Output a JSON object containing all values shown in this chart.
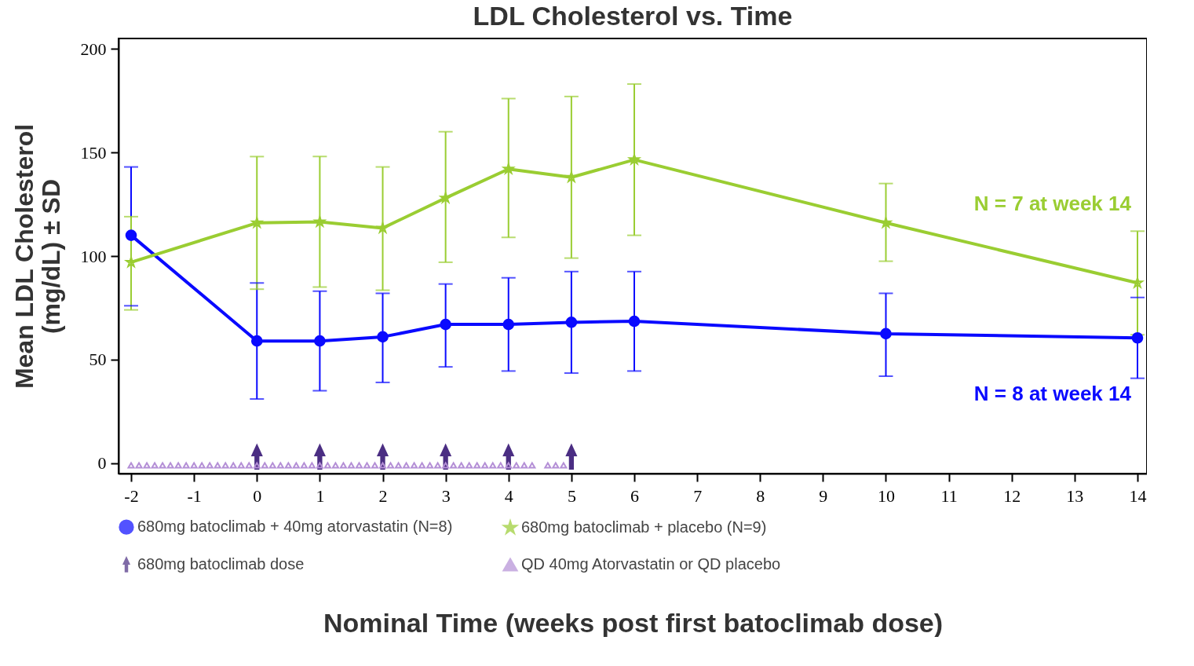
{
  "chart_data": {
    "type": "line",
    "title": "LDL Cholesterol vs. Time",
    "xlabel": "Nominal Time (weeks post first batoclimab dose)",
    "ylabel": "Mean LDL Cholesterol\n(mg/dL) ± SD",
    "x": [
      -2,
      0,
      1,
      2,
      3,
      4,
      5,
      6,
      10,
      14
    ],
    "series": [
      {
        "name": "680mg batoclimab + 40mg atorvastatin (N=8)",
        "color": "#0a0aff",
        "marker": "circle",
        "values": [
          110,
          59,
          59,
          61,
          67,
          67,
          68,
          68.5,
          62.5,
          60.5
        ],
        "errors": [
          [
            76,
            143
          ],
          [
            31,
            87
          ],
          [
            35,
            83
          ],
          [
            39,
            82
          ],
          [
            46.5,
            86.5
          ],
          [
            44.5,
            89.5
          ],
          [
            43.5,
            92.5
          ],
          [
            44.5,
            92.5
          ],
          [
            42,
            82
          ],
          [
            41,
            80
          ]
        ]
      },
      {
        "name": "680mg batoclimab + placebo (N=9)",
        "color": "#9acd32",
        "marker": "star",
        "values": [
          97,
          116,
          116.5,
          113.5,
          128,
          142,
          138,
          146.5,
          116,
          87
        ],
        "errors": [
          [
            74,
            119
          ],
          [
            84,
            148
          ],
          [
            85,
            148
          ],
          [
            83.5,
            143
          ],
          [
            97,
            160
          ],
          [
            109,
            176
          ],
          [
            99,
            177
          ],
          [
            110,
            183
          ],
          [
            97.5,
            135
          ],
          [
            62,
            112
          ]
        ]
      },
      {
        "name": "680mg batoclimab dose",
        "type": "scatter",
        "color": "#4b2e83",
        "x": [
          0,
          1,
          2,
          3,
          4,
          5
        ],
        "values": [
          3,
          3,
          3,
          3,
          3,
          3
        ]
      },
      {
        "name": "QD 40mg Atorvastatin or QD placebo",
        "type": "scatter",
        "color": "#b48fd6",
        "marker": "triangle",
        "x": [
          -2,
          -1.875,
          -1.75,
          -1.625,
          -1.5,
          -1.375,
          -1.25,
          -1.125,
          -1,
          -0.875,
          -0.75,
          -0.625,
          -0.5,
          -0.375,
          -0.25,
          -0.125,
          0,
          0.125,
          0.25,
          0.375,
          0.5,
          0.625,
          0.75,
          0.875,
          1,
          1.125,
          1.25,
          1.375,
          1.5,
          1.625,
          1.75,
          1.875,
          2,
          2.125,
          2.25,
          2.375,
          2.5,
          2.625,
          2.75,
          2.875,
          3,
          3.125,
          3.25,
          3.375,
          3.5,
          3.625,
          3.75,
          3.875,
          4,
          4.125,
          4.25,
          4.375,
          4.625,
          4.75,
          4.875
        ],
        "values": [
          -1,
          -1,
          -1,
          -1,
          -1,
          -1,
          -1,
          -1,
          -1,
          -1,
          -1,
          -1,
          -1,
          -1,
          -1,
          -1,
          -1,
          -1,
          -1,
          -1,
          -1,
          -1,
          -1,
          -1,
          -1,
          -1,
          -1,
          -1,
          -1,
          -1,
          -1,
          -1,
          -1,
          -1,
          -1,
          -1,
          -1,
          -1,
          -1,
          -1,
          -1,
          -1,
          -1,
          -1,
          -1,
          -1,
          -1,
          -1,
          -1,
          -1,
          -1,
          -1,
          -1,
          -1,
          -1
        ]
      }
    ],
    "xlim": [
      -2.2,
      14.15
    ],
    "xticks": [
      -2,
      -1,
      0,
      1,
      2,
      3,
      4,
      5,
      6,
      7,
      8,
      9,
      10,
      11,
      12,
      13,
      14
    ],
    "ylim": [
      -5,
      205
    ],
    "yticks": [
      0,
      50,
      100,
      150,
      200
    ],
    "annotations": [
      "N = 7 at week 14",
      "N = 8 at week 14"
    ],
    "legend": "bottom",
    "grid": false
  }
}
